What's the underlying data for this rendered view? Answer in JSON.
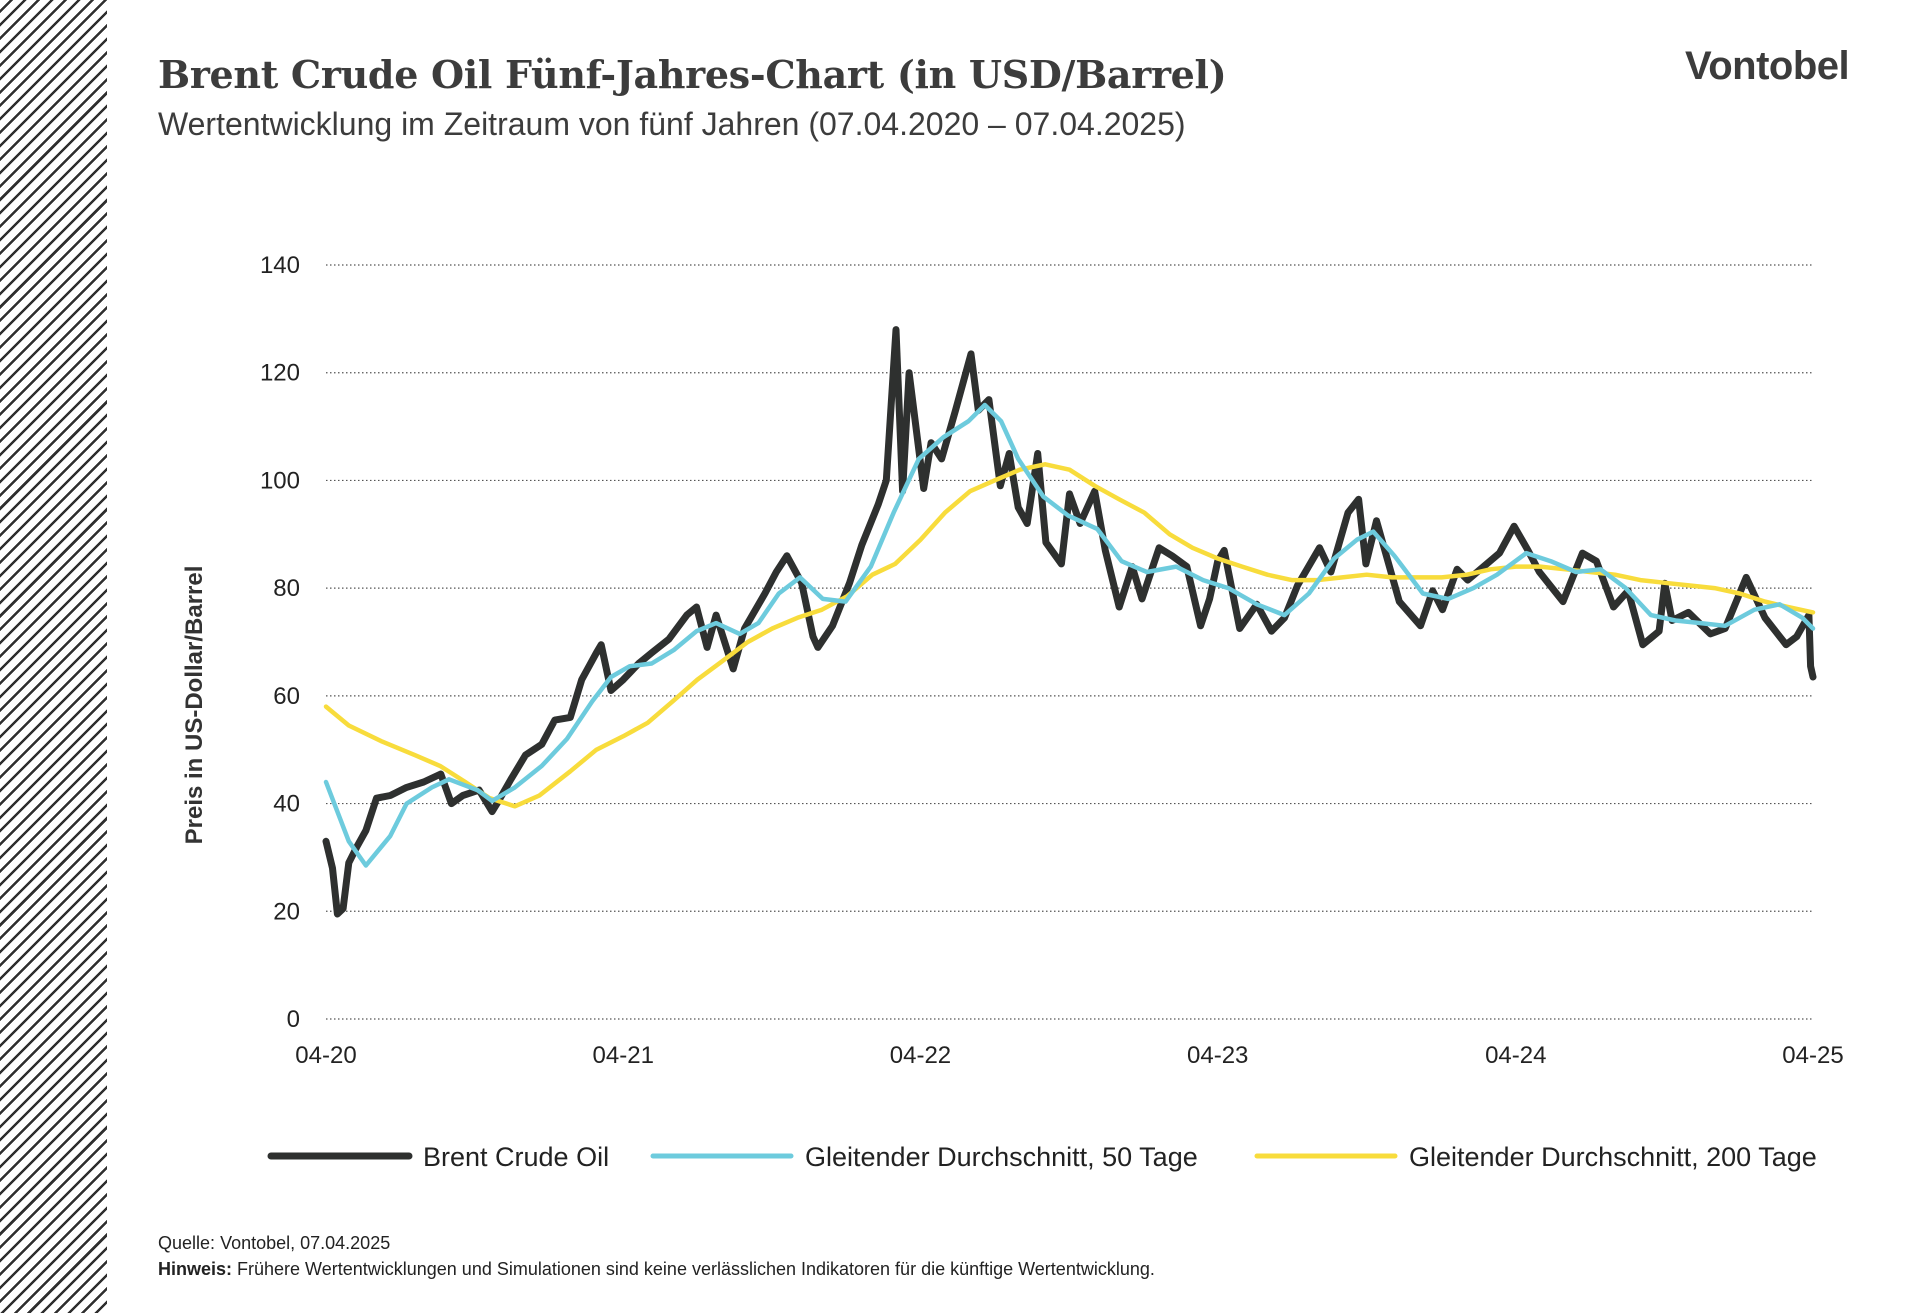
{
  "header": {
    "title": "Brent Crude Oil Fünf-Jahres-Chart (in USD/Barrel)",
    "subtitle": "Wertentwicklung im Zeitraum von fünf Jahren (07.04.2020 – 07.04.2025)",
    "brand": "Vontobel"
  },
  "footer": {
    "source_label": "Quelle:",
    "source_value": "Vontobel,  07.04.2025",
    "note_label": "Hinweis:",
    "note_value": "Frühere Wertentwicklungen und Simulationen sind keine verlässlichen Indikatoren für die künftige Wertentwicklung."
  },
  "colors": {
    "brent": "#2e302f",
    "ma50": "#6dcbdd",
    "ma200": "#f8dc3c",
    "grid": "#555555",
    "hatch": "#2f2f2f"
  },
  "chart_data": {
    "type": "line",
    "title": "Brent Crude Oil Fünf-Jahres-Chart (in USD/Barrel)",
    "subtitle": "Wertentwicklung im Zeitraum von fünf Jahren (07.04.2020 – 07.04.2025)",
    "xlabel": "",
    "ylabel": "Preis in US-Dollar/Barrel",
    "ylim": [
      0,
      140
    ],
    "yticks": [
      0,
      20,
      40,
      60,
      80,
      100,
      120,
      140
    ],
    "xlim": [
      "2020-04-07",
      "2025-04-07"
    ],
    "xticks": [
      {
        "date": "2020-04-07",
        "label": "04-20"
      },
      {
        "date": "2021-04-07",
        "label": "04-21"
      },
      {
        "date": "2022-04-07",
        "label": "04-22"
      },
      {
        "date": "2023-04-07",
        "label": "04-23"
      },
      {
        "date": "2024-04-07",
        "label": "04-24"
      },
      {
        "date": "2025-04-07",
        "label": "04-25"
      }
    ],
    "grid": "horizontal dotted",
    "legend_position": "bottom",
    "series": [
      {
        "name": "Brent Crude Oil",
        "color": "#2e302f",
        "points": [
          [
            "2020-04-07",
            33
          ],
          [
            "2020-04-15",
            28
          ],
          [
            "2020-04-21",
            19.5
          ],
          [
            "2020-04-28",
            20.5
          ],
          [
            "2020-05-05",
            29
          ],
          [
            "2020-05-15",
            32
          ],
          [
            "2020-05-26",
            35
          ],
          [
            "2020-06-08",
            41
          ],
          [
            "2020-06-25",
            41.5
          ],
          [
            "2020-07-15",
            43
          ],
          [
            "2020-08-05",
            44
          ],
          [
            "2020-08-26",
            45.5
          ],
          [
            "2020-09-08",
            40
          ],
          [
            "2020-09-22",
            41.5
          ],
          [
            "2020-10-12",
            42.5
          ],
          [
            "2020-10-28",
            38.5
          ],
          [
            "2020-11-05",
            40.5
          ],
          [
            "2020-11-20",
            44.5
          ],
          [
            "2020-12-08",
            49
          ],
          [
            "2020-12-28",
            51
          ],
          [
            "2021-01-13",
            55.5
          ],
          [
            "2021-02-01",
            56
          ],
          [
            "2021-02-15",
            63
          ],
          [
            "2021-03-05",
            68
          ],
          [
            "2021-03-11",
            69.5
          ],
          [
            "2021-03-23",
            61
          ],
          [
            "2021-04-07",
            63
          ],
          [
            "2021-04-26",
            66
          ],
          [
            "2021-05-12",
            68
          ],
          [
            "2021-06-02",
            70.5
          ],
          [
            "2021-06-24",
            75
          ],
          [
            "2021-07-06",
            76.5
          ],
          [
            "2021-07-19",
            69
          ],
          [
            "2021-07-30",
            75
          ],
          [
            "2021-08-20",
            65
          ],
          [
            "2021-09-03",
            72.5
          ],
          [
            "2021-09-28",
            79
          ],
          [
            "2021-10-12",
            83
          ],
          [
            "2021-10-25",
            86
          ],
          [
            "2021-11-12",
            81
          ],
          [
            "2021-11-26",
            71
          ],
          [
            "2021-12-02",
            69
          ],
          [
            "2021-12-20",
            73
          ],
          [
            "2022-01-10",
            81
          ],
          [
            "2022-01-25",
            88
          ],
          [
            "2022-02-14",
            95.5
          ],
          [
            "2022-02-24",
            100
          ],
          [
            "2022-03-08",
            128
          ],
          [
            "2022-03-16",
            98
          ],
          [
            "2022-03-24",
            120
          ],
          [
            "2022-04-11",
            98.5
          ],
          [
            "2022-04-20",
            107
          ],
          [
            "2022-05-03",
            104
          ],
          [
            "2022-05-20",
            113
          ],
          [
            "2022-06-08",
            123.5
          ],
          [
            "2022-06-17",
            113
          ],
          [
            "2022-06-30",
            115
          ],
          [
            "2022-07-14",
            99
          ],
          [
            "2022-07-25",
            105
          ],
          [
            "2022-08-05",
            95
          ],
          [
            "2022-08-16",
            92
          ],
          [
            "2022-08-29",
            105
          ],
          [
            "2022-09-08",
            88.5
          ],
          [
            "2022-09-27",
            84.5
          ],
          [
            "2022-10-07",
            97.5
          ],
          [
            "2022-10-20",
            92
          ],
          [
            "2022-11-07",
            98
          ],
          [
            "2022-11-20",
            87
          ],
          [
            "2022-12-07",
            76.5
          ],
          [
            "2022-12-23",
            84
          ],
          [
            "2023-01-04",
            78
          ],
          [
            "2023-01-25",
            87.5
          ],
          [
            "2023-02-10",
            86
          ],
          [
            "2023-02-28",
            84
          ],
          [
            "2023-03-17",
            73
          ],
          [
            "2023-03-28",
            78
          ],
          [
            "2023-04-07",
            85
          ],
          [
            "2023-04-15",
            87
          ],
          [
            "2023-05-04",
            72.5
          ],
          [
            "2023-05-25",
            77
          ],
          [
            "2023-06-12",
            72
          ],
          [
            "2023-06-28",
            74.5
          ],
          [
            "2023-07-14",
            80.5
          ],
          [
            "2023-08-10",
            87.5
          ],
          [
            "2023-08-24",
            83
          ],
          [
            "2023-09-14",
            94
          ],
          [
            "2023-09-27",
            96.5
          ],
          [
            "2023-10-06",
            84.5
          ],
          [
            "2023-10-19",
            92.5
          ],
          [
            "2023-11-16",
            77.5
          ],
          [
            "2023-12-12",
            73
          ],
          [
            "2023-12-27",
            79.5
          ],
          [
            "2024-01-08",
            76
          ],
          [
            "2024-01-26",
            83.5
          ],
          [
            "2024-02-08",
            81.5
          ],
          [
            "2024-03-18",
            86.5
          ],
          [
            "2024-04-05",
            91.5
          ],
          [
            "2024-04-22",
            87
          ],
          [
            "2024-05-06",
            83
          ],
          [
            "2024-06-04",
            77.5
          ],
          [
            "2024-06-28",
            86.5
          ],
          [
            "2024-07-15",
            85
          ],
          [
            "2024-08-05",
            76.5
          ],
          [
            "2024-08-23",
            79.5
          ],
          [
            "2024-09-10",
            69.5
          ],
          [
            "2024-09-30",
            72
          ],
          [
            "2024-10-07",
            80.9
          ],
          [
            "2024-10-16",
            74
          ],
          [
            "2024-11-05",
            75.5
          ],
          [
            "2024-12-02",
            71.5
          ],
          [
            "2024-12-20",
            72.5
          ],
          [
            "2025-01-15",
            82
          ],
          [
            "2025-02-07",
            74.5
          ],
          [
            "2025-03-05",
            69.5
          ],
          [
            "2025-03-18",
            71
          ],
          [
            "2025-04-02",
            75
          ],
          [
            "2025-04-04",
            65.5
          ],
          [
            "2025-04-07",
            63.5
          ]
        ]
      },
      {
        "name": "Gleitender Durchschnitt, 50 Tage",
        "color": "#6dcbdd",
        "points": [
          [
            "2020-04-07",
            44
          ],
          [
            "2020-05-05",
            33
          ],
          [
            "2020-05-26",
            28.5
          ],
          [
            "2020-06-25",
            34
          ],
          [
            "2020-07-15",
            40
          ],
          [
            "2020-08-15",
            43
          ],
          [
            "2020-09-05",
            44.5
          ],
          [
            "2020-10-10",
            42.5
          ],
          [
            "2020-10-28",
            40.5
          ],
          [
            "2020-11-25",
            43
          ],
          [
            "2020-12-28",
            47
          ],
          [
            "2021-01-28",
            52
          ],
          [
            "2021-02-28",
            59
          ],
          [
            "2021-03-23",
            63.5
          ],
          [
            "2021-04-15",
            65.5
          ],
          [
            "2021-05-12",
            66
          ],
          [
            "2021-06-08",
            68.5
          ],
          [
            "2021-07-06",
            72
          ],
          [
            "2021-07-30",
            73.5
          ],
          [
            "2021-08-28",
            71.5
          ],
          [
            "2021-09-20",
            73.5
          ],
          [
            "2021-10-15",
            79
          ],
          [
            "2021-11-10",
            82
          ],
          [
            "2021-12-08",
            78
          ],
          [
            "2022-01-05",
            77.5
          ],
          [
            "2022-02-05",
            84
          ],
          [
            "2022-03-05",
            94
          ],
          [
            "2022-04-05",
            104
          ],
          [
            "2022-05-05",
            108
          ],
          [
            "2022-06-05",
            111
          ],
          [
            "2022-06-25",
            114
          ],
          [
            "2022-07-15",
            111
          ],
          [
            "2022-08-05",
            104
          ],
          [
            "2022-09-05",
            97
          ],
          [
            "2022-10-05",
            93.5
          ],
          [
            "2022-11-10",
            91
          ],
          [
            "2022-12-10",
            85
          ],
          [
            "2023-01-10",
            83
          ],
          [
            "2023-02-15",
            84
          ],
          [
            "2023-03-20",
            81.5
          ],
          [
            "2023-04-20",
            80
          ],
          [
            "2023-05-25",
            77
          ],
          [
            "2023-06-28",
            75
          ],
          [
            "2023-07-28",
            79
          ],
          [
            "2023-08-28",
            85.5
          ],
          [
            "2023-09-25",
            89
          ],
          [
            "2023-10-15",
            90.5
          ],
          [
            "2023-11-10",
            86
          ],
          [
            "2023-12-15",
            79
          ],
          [
            "2024-01-15",
            78
          ],
          [
            "2024-02-15",
            80
          ],
          [
            "2024-03-15",
            82.5
          ],
          [
            "2024-04-20",
            86.5
          ],
          [
            "2024-05-20",
            85
          ],
          [
            "2024-06-20",
            83
          ],
          [
            "2024-07-20",
            83.5
          ],
          [
            "2024-08-20",
            80
          ],
          [
            "2024-09-20",
            75
          ],
          [
            "2024-10-20",
            74
          ],
          [
            "2024-11-20",
            73.5
          ],
          [
            "2024-12-20",
            73
          ],
          [
            "2025-01-25",
            76
          ],
          [
            "2025-02-25",
            77
          ],
          [
            "2025-03-25",
            74.5
          ],
          [
            "2025-04-07",
            72.5
          ]
        ]
      },
      {
        "name": "Gleitender Durchschnitt, 200 Tage",
        "color": "#f8dc3c",
        "points": [
          [
            "2020-04-07",
            58
          ],
          [
            "2020-05-05",
            54.5
          ],
          [
            "2020-06-15",
            51.5
          ],
          [
            "2020-07-25",
            49
          ],
          [
            "2020-08-25",
            47
          ],
          [
            "2020-09-25",
            44
          ],
          [
            "2020-10-25",
            41
          ],
          [
            "2020-11-25",
            39.5
          ],
          [
            "2020-12-25",
            41.5
          ],
          [
            "2021-02-01",
            46
          ],
          [
            "2021-03-05",
            50
          ],
          [
            "2021-04-07",
            52.5
          ],
          [
            "2021-05-07",
            55
          ],
          [
            "2021-06-07",
            59
          ],
          [
            "2021-07-07",
            63
          ],
          [
            "2021-08-07",
            66.5
          ],
          [
            "2021-09-07",
            70
          ],
          [
            "2021-10-07",
            72.5
          ],
          [
            "2021-11-07",
            74.5
          ],
          [
            "2021-12-07",
            76
          ],
          [
            "2022-01-07",
            78.5
          ],
          [
            "2022-02-07",
            82.5
          ],
          [
            "2022-03-07",
            84.5
          ],
          [
            "2022-04-07",
            89
          ],
          [
            "2022-05-07",
            94
          ],
          [
            "2022-06-07",
            98
          ],
          [
            "2022-07-07",
            100
          ],
          [
            "2022-08-07",
            102
          ],
          [
            "2022-09-07",
            103
          ],
          [
            "2022-10-07",
            102
          ],
          [
            "2022-11-07",
            99
          ],
          [
            "2022-12-07",
            96.5
          ],
          [
            "2023-01-07",
            94
          ],
          [
            "2023-02-07",
            90
          ],
          [
            "2023-03-07",
            87.5
          ],
          [
            "2023-04-07",
            85.5
          ],
          [
            "2023-05-07",
            84
          ],
          [
            "2023-06-07",
            82.5
          ],
          [
            "2023-07-07",
            81.5
          ],
          [
            "2023-08-07",
            81.5
          ],
          [
            "2023-09-07",
            82
          ],
          [
            "2023-10-07",
            82.5
          ],
          [
            "2023-11-07",
            82
          ],
          [
            "2023-12-07",
            82
          ],
          [
            "2024-01-07",
            82
          ],
          [
            "2024-02-07",
            82.5
          ],
          [
            "2024-03-07",
            83.5
          ],
          [
            "2024-04-07",
            84
          ],
          [
            "2024-05-07",
            84
          ],
          [
            "2024-06-07",
            83.5
          ],
          [
            "2024-07-07",
            83
          ],
          [
            "2024-08-07",
            82.5
          ],
          [
            "2024-09-07",
            81.5
          ],
          [
            "2024-10-07",
            81
          ],
          [
            "2024-11-07",
            80.5
          ],
          [
            "2024-12-07",
            80
          ],
          [
            "2025-01-07",
            79
          ],
          [
            "2025-02-07",
            77.5
          ],
          [
            "2025-03-07",
            76.5
          ],
          [
            "2025-04-07",
            75.5
          ]
        ]
      }
    ]
  }
}
